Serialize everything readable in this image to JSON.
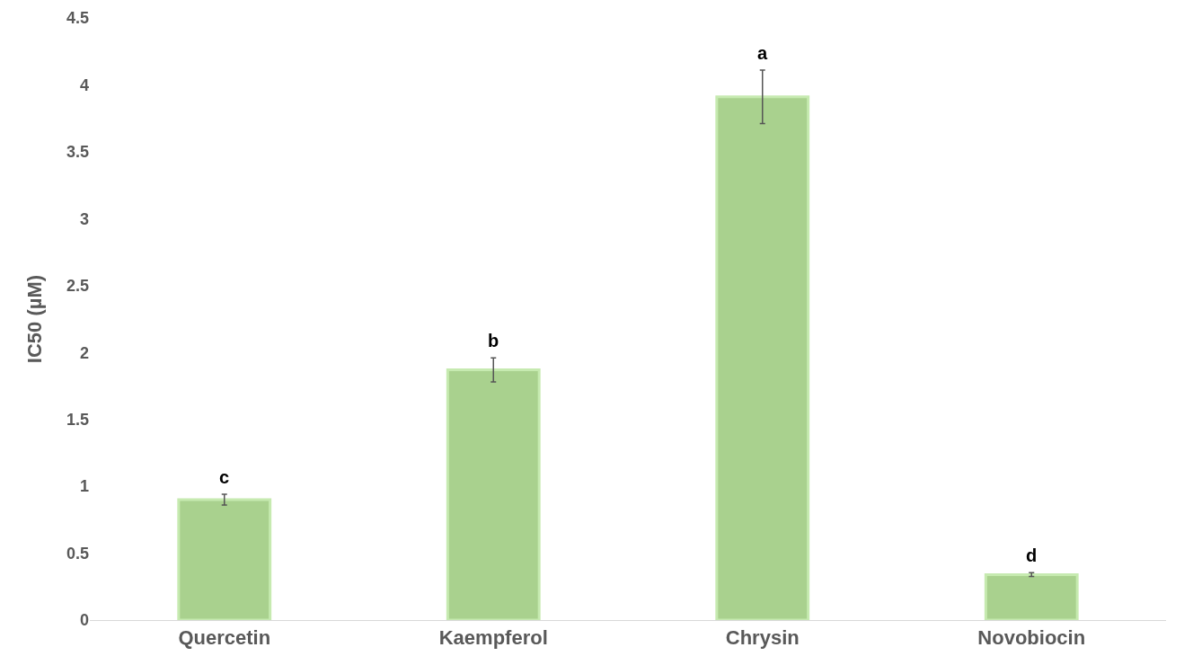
{
  "chart_data": {
    "type": "bar",
    "ylabel": "IC50 (µM)",
    "categories": [
      "Quercetin",
      "Kaempferol",
      "Chrysin",
      "Novobiocin"
    ],
    "values": [
      0.9,
      1.87,
      3.91,
      0.34
    ],
    "errors": [
      0.04,
      0.09,
      0.2,
      0.015
    ],
    "color": "#a9d18e",
    "ylim": [
      0,
      4.5
    ],
    "yticks": [
      0,
      0.5,
      1,
      1.5,
      2,
      2.5,
      3,
      3.5,
      4,
      4.5
    ],
    "grid": false,
    "annotations": [
      {
        "text": "c",
        "x": "Quercetin",
        "y": 0.94
      },
      {
        "text": "b",
        "x": "Kaempferol",
        "y": 1.96
      },
      {
        "text": "a",
        "x": "Chrysin",
        "y": 4.11
      },
      {
        "text": "d",
        "x": "Novobiocin",
        "y": 0.355
      }
    ]
  }
}
